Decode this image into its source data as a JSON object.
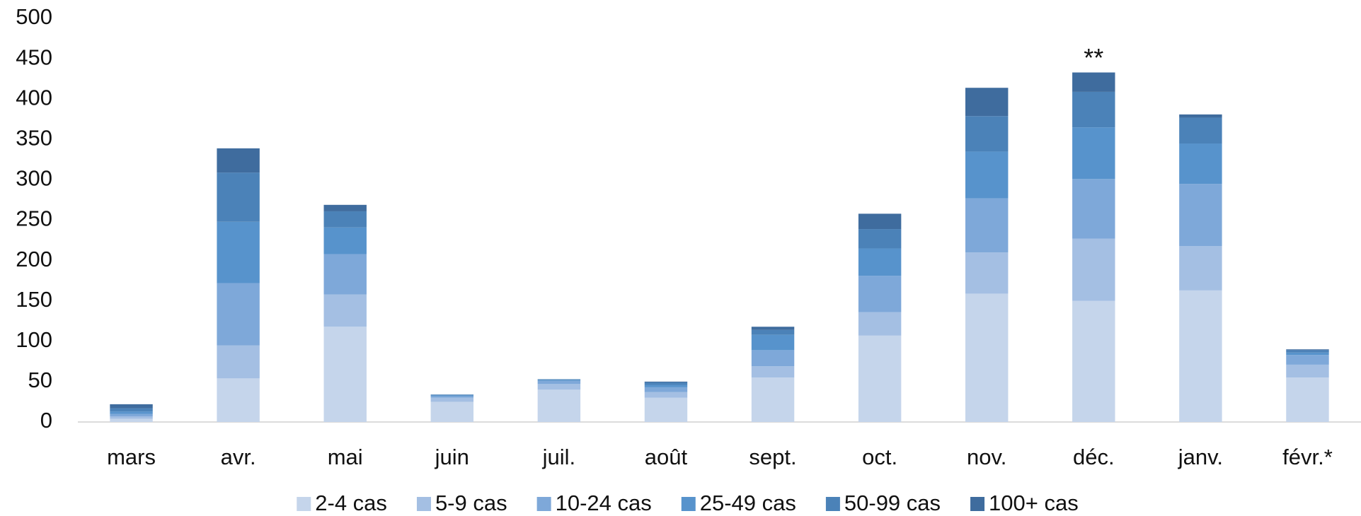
{
  "chart_data": {
    "type": "stacked_bar",
    "categories": [
      "mars",
      "avr.",
      "mai",
      "juin",
      "juil.",
      "août",
      "sept.",
      "oct.",
      "nov.",
      "déc.",
      "janv.",
      "févr.*"
    ],
    "series": [
      {
        "name": "2-4 cas",
        "color": "#c5d5eb",
        "values": [
          4,
          54,
          118,
          25,
          40,
          30,
          55,
          107,
          159,
          150,
          163,
          55
        ]
      },
      {
        "name": "5-9 cas",
        "color": "#a4bfe3",
        "values": [
          3,
          41,
          40,
          5,
          7,
          7,
          14,
          29,
          51,
          77,
          55,
          16
        ]
      },
      {
        "name": "10-24 cas",
        "color": "#7ea8d9",
        "values": [
          3,
          77,
          50,
          2,
          4,
          6,
          20,
          45,
          67,
          74,
          77,
          12
        ]
      },
      {
        "name": "25-49 cas",
        "color": "#5793cc",
        "values": [
          3,
          76,
          33,
          1,
          1,
          3,
          19,
          34,
          58,
          64,
          50,
          3
        ]
      },
      {
        "name": "50-99 cas",
        "color": "#4b82b8",
        "values": [
          4,
          61,
          20,
          1,
          1,
          3,
          6,
          24,
          44,
          44,
          32,
          3
        ]
      },
      {
        "name": "100+ cas",
        "color": "#3f6c9e",
        "values": [
          5,
          30,
          8,
          0,
          0,
          1,
          4,
          19,
          35,
          24,
          4,
          1
        ]
      }
    ],
    "annotation": "**",
    "annotation_category": 9,
    "ylim": [
      0,
      500
    ],
    "yticks": [
      0,
      50,
      100,
      150,
      200,
      250,
      300,
      350,
      400,
      450,
      500
    ],
    "grid": false
  }
}
